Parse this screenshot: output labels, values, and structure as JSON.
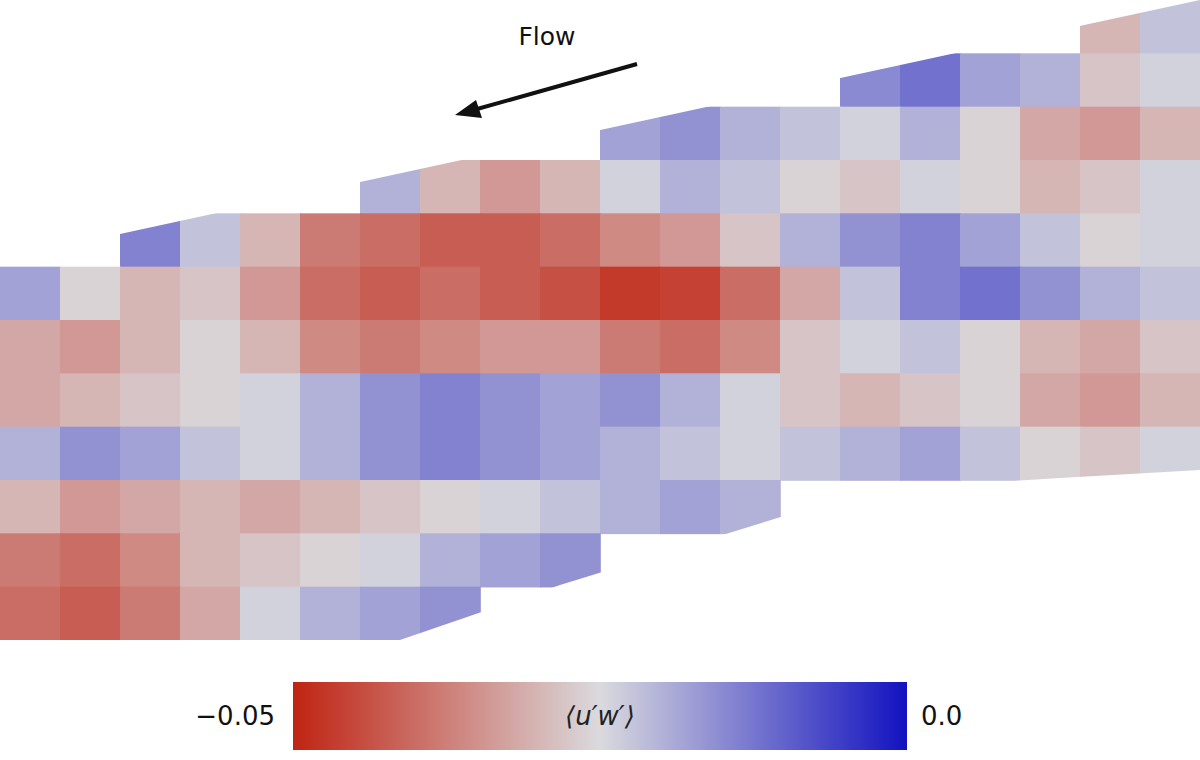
{
  "chart_data": {
    "type": "heatmap",
    "tick_labels": false,
    "annotations": [
      {
        "text": "Flow"
      }
    ],
    "cells": [
      [
        null,
        null,
        null,
        null,
        null,
        null,
        null,
        null,
        null,
        null,
        null,
        null,
        null,
        null,
        null,
        null,
        null,
        null,
        -0.03,
        -0.022
      ],
      [
        null,
        null,
        null,
        null,
        null,
        null,
        null,
        null,
        null,
        null,
        null,
        null,
        null,
        null,
        -0.015,
        -0.012,
        -0.018,
        -0.02,
        -0.028,
        -0.024
      ],
      [
        null,
        null,
        null,
        null,
        null,
        null,
        null,
        null,
        null,
        null,
        -0.018,
        -0.016,
        -0.02,
        -0.022,
        -0.024,
        -0.02,
        -0.026,
        -0.032,
        -0.034,
        -0.03
      ],
      [
        null,
        null,
        null,
        null,
        null,
        null,
        -0.02,
        -0.03,
        -0.034,
        -0.03,
        -0.024,
        -0.02,
        -0.022,
        -0.026,
        -0.028,
        -0.024,
        -0.026,
        -0.03,
        -0.028,
        -0.024
      ],
      [
        null,
        null,
        -0.014,
        -0.022,
        -0.03,
        -0.038,
        -0.04,
        -0.042,
        -0.042,
        -0.04,
        -0.036,
        -0.034,
        -0.028,
        -0.02,
        -0.016,
        -0.014,
        -0.018,
        -0.022,
        -0.026,
        -0.024
      ],
      [
        -0.018,
        -0.026,
        -0.03,
        -0.028,
        -0.034,
        -0.04,
        -0.042,
        -0.04,
        -0.042,
        -0.044,
        -0.047,
        -0.046,
        -0.04,
        -0.032,
        -0.022,
        -0.014,
        -0.012,
        -0.016,
        -0.02,
        -0.022
      ],
      [
        -0.032,
        -0.034,
        -0.03,
        -0.026,
        -0.03,
        -0.036,
        -0.038,
        -0.036,
        -0.034,
        -0.034,
        -0.038,
        -0.04,
        -0.036,
        -0.028,
        -0.024,
        -0.022,
        -0.026,
        -0.03,
        -0.032,
        -0.028
      ],
      [
        -0.032,
        -0.03,
        -0.028,
        -0.026,
        -0.024,
        -0.02,
        -0.016,
        -0.014,
        -0.016,
        -0.018,
        -0.016,
        -0.02,
        -0.024,
        -0.028,
        -0.03,
        -0.028,
        -0.026,
        -0.032,
        -0.034,
        -0.03
      ],
      [
        -0.02,
        -0.016,
        -0.018,
        -0.022,
        -0.024,
        -0.02,
        -0.016,
        -0.014,
        -0.016,
        -0.018,
        -0.02,
        -0.022,
        -0.024,
        -0.022,
        -0.02,
        -0.018,
        -0.022,
        -0.026,
        -0.028,
        -0.024
      ],
      [
        -0.03,
        -0.034,
        -0.032,
        -0.03,
        -0.032,
        -0.03,
        -0.028,
        -0.026,
        -0.024,
        -0.022,
        -0.02,
        -0.018,
        -0.02,
        null,
        null,
        null,
        null,
        null,
        null,
        null
      ],
      [
        -0.038,
        -0.04,
        -0.036,
        -0.03,
        -0.028,
        -0.026,
        -0.024,
        -0.02,
        -0.018,
        -0.016,
        null,
        null,
        null,
        null,
        null,
        null,
        null,
        null,
        null,
        null
      ],
      [
        -0.04,
        -0.042,
        -0.038,
        -0.032,
        -0.024,
        -0.02,
        -0.018,
        -0.016,
        null,
        null,
        null,
        null,
        null,
        null,
        null,
        null,
        null,
        null,
        null,
        null
      ]
    ],
    "colorbar": {
      "label": "⟨u′w′⟩",
      "range": [
        -0.05,
        0.0
      ],
      "ticks": [
        {
          "value": -0.05,
          "label": "−0.05"
        },
        {
          "value": 0,
          "label": "0.0"
        }
      ]
    }
  }
}
